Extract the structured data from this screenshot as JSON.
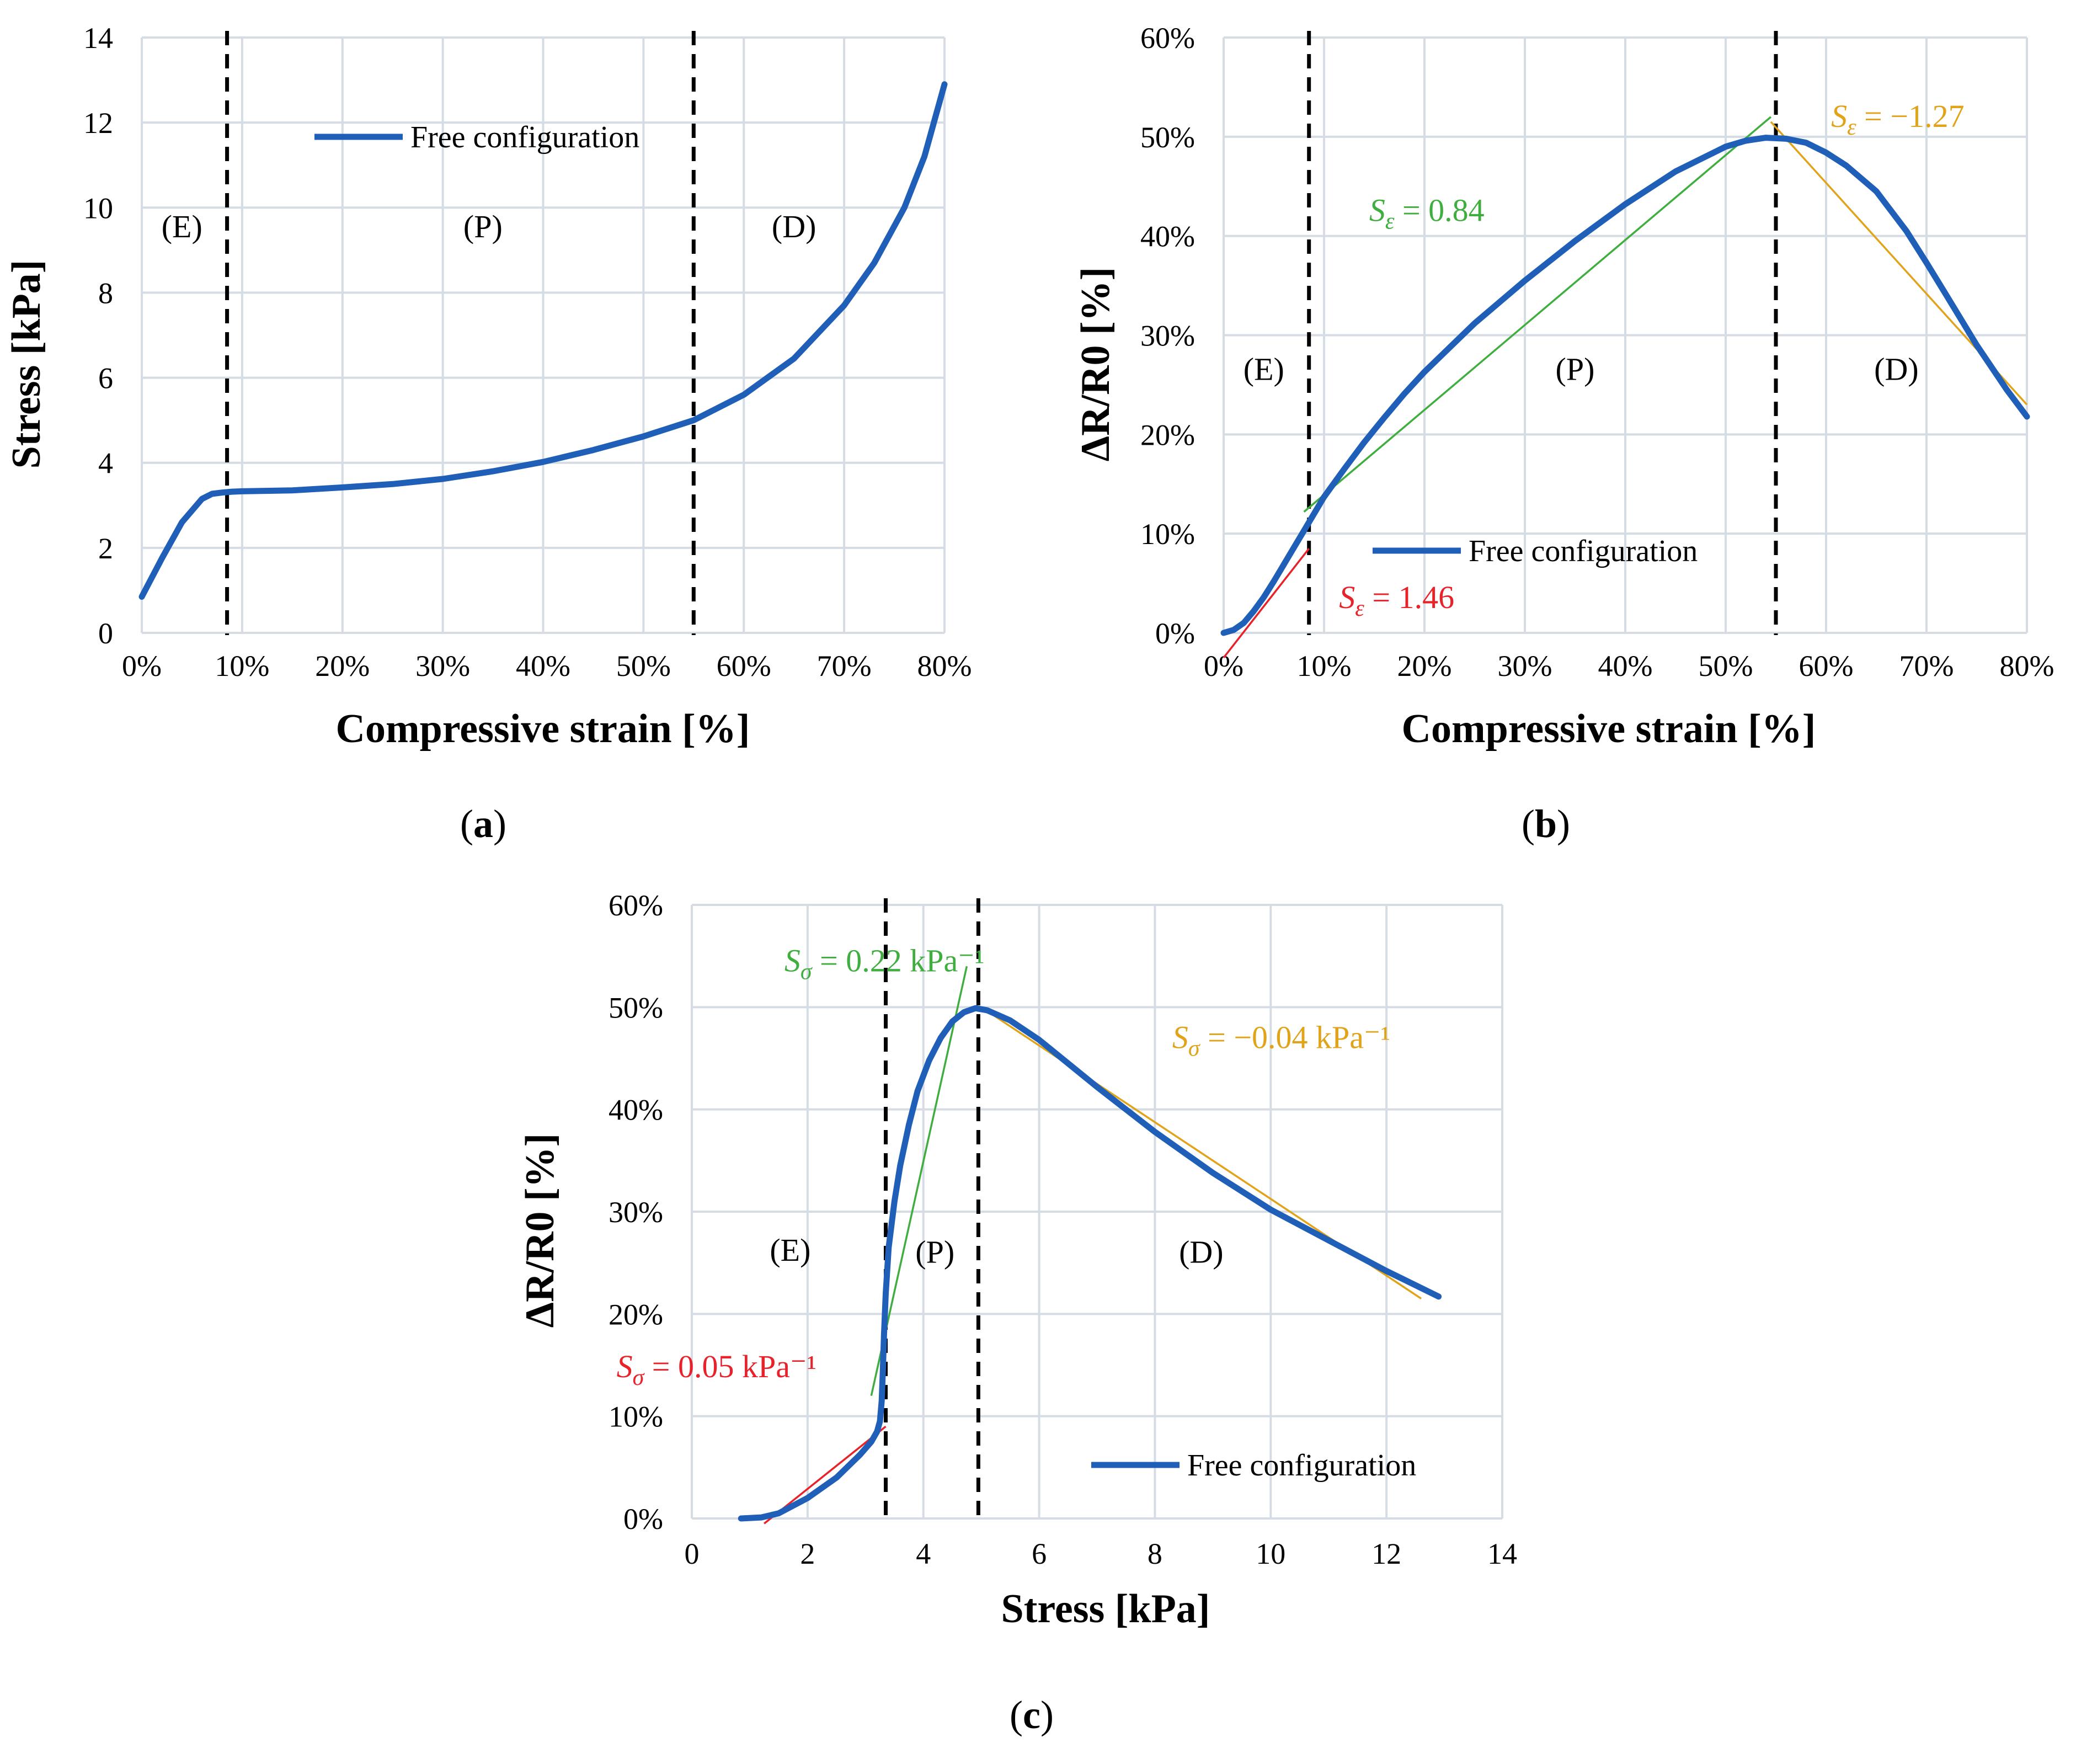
{
  "colors": {
    "curve": "#1f5fb8",
    "grid": "#d6dce4",
    "red": "#e8222a",
    "green": "#3fae3f",
    "orange": "#e0a31a",
    "vline": "#000000"
  },
  "chart_data": [
    {
      "id": "a",
      "type": "line",
      "panel_label": "a",
      "xlabel": "Compressive strain [%]",
      "ylabel": "Stress [kPa]",
      "xlim": [
        0,
        80
      ],
      "ylim": [
        0,
        14
      ],
      "x_ticks": [
        0,
        10,
        20,
        30,
        40,
        50,
        60,
        70,
        80
      ],
      "y_ticks": [
        0,
        2,
        4,
        6,
        8,
        10,
        12,
        14
      ],
      "x_tick_labels": [
        "0%",
        "10%",
        "20%",
        "30%",
        "40%",
        "50%",
        "60%",
        "70%",
        "80%"
      ],
      "y_tick_labels": [
        "0",
        "2",
        "4",
        "6",
        "8",
        "10",
        "12",
        "14"
      ],
      "region_boundaries": [
        8.5,
        55
      ],
      "regions": [
        {
          "label": "(E)",
          "x": 4,
          "y": 9.3
        },
        {
          "label": "(P)",
          "x": 34,
          "y": 9.3
        },
        {
          "label": "(D)",
          "x": 65,
          "y": 9.3
        }
      ],
      "legend": {
        "label": "Free configuration",
        "position": "top-center"
      },
      "series": [
        {
          "name": "Free configuration",
          "x": [
            0,
            2,
            4,
            6,
            7,
            8,
            9,
            10,
            15,
            20,
            25,
            30,
            35,
            40,
            45,
            50,
            55,
            60,
            65,
            70,
            73,
            76,
            78,
            80
          ],
          "y": [
            0.85,
            1.75,
            2.6,
            3.15,
            3.27,
            3.3,
            3.32,
            3.33,
            3.35,
            3.42,
            3.5,
            3.62,
            3.8,
            4.02,
            4.3,
            4.62,
            5.0,
            5.6,
            6.45,
            7.7,
            8.7,
            10.0,
            11.2,
            12.9
          ]
        }
      ],
      "slopes": []
    },
    {
      "id": "b",
      "type": "line",
      "panel_label": "b",
      "xlabel": "Compressive strain [%]",
      "ylabel": "ΔR/R0 [%]",
      "xlim": [
        0,
        80
      ],
      "ylim": [
        0,
        60
      ],
      "x_ticks": [
        0,
        10,
        20,
        30,
        40,
        50,
        60,
        70,
        80
      ],
      "y_ticks": [
        0,
        10,
        20,
        30,
        40,
        50,
        60
      ],
      "x_tick_labels": [
        "0%",
        "10%",
        "20%",
        "30%",
        "40%",
        "50%",
        "60%",
        "70%",
        "80%"
      ],
      "y_tick_labels": [
        "0%",
        "10%",
        "20%",
        "30%",
        "40%",
        "50%",
        "60%"
      ],
      "region_boundaries": [
        8.5,
        55
      ],
      "regions": [
        {
          "label": "(E)",
          "x": 4,
          "y": 25.5
        },
        {
          "label": "(P)",
          "x": 35,
          "y": 25.5
        },
        {
          "label": "(D)",
          "x": 67,
          "y": 25.5
        }
      ],
      "legend": {
        "label": "Free configuration",
        "position": "bottom-center"
      },
      "series": [
        {
          "name": "Free configuration",
          "x": [
            0,
            1,
            2,
            3,
            4,
            5,
            6,
            7,
            8,
            9,
            10,
            12,
            14,
            16,
            18,
            20,
            25,
            30,
            35,
            40,
            45,
            50,
            52,
            54,
            56,
            58,
            60,
            62,
            65,
            68,
            70,
            72,
            75,
            78,
            80
          ],
          "y": [
            0,
            0.3,
            1,
            2.2,
            3.6,
            5.2,
            6.9,
            8.6,
            10.3,
            12.0,
            13.7,
            16.5,
            19.2,
            21.7,
            24.1,
            26.3,
            31.2,
            35.5,
            39.5,
            43.2,
            46.5,
            49.0,
            49.6,
            49.9,
            49.8,
            49.4,
            48.4,
            47.1,
            44.5,
            40.5,
            37.3,
            34.0,
            29.0,
            24.5,
            21.8
          ]
        }
      ],
      "slopes": [
        {
          "label": "1.46",
          "symbol": "S",
          "sub": "ε",
          "color": "red",
          "from": [
            0,
            -2.5
          ],
          "to": [
            8.5,
            8.5
          ],
          "label_pos": [
            11.5,
            2.5
          ]
        },
        {
          "label": "0.84",
          "symbol": "S",
          "sub": "ε",
          "color": "green",
          "from": [
            8,
            12.2
          ],
          "to": [
            54.5,
            52.0
          ],
          "label_pos": [
            14.5,
            41.5
          ]
        },
        {
          "label": "−1.27",
          "symbol": "S",
          "sub": "ε",
          "color": "orange",
          "from": [
            54.5,
            51.5
          ],
          "to": [
            80,
            23.0
          ],
          "label_pos": [
            60.5,
            51.0
          ]
        }
      ]
    },
    {
      "id": "c",
      "type": "line",
      "panel_label": "c",
      "xlabel": "Stress [kPa]",
      "ylabel": "ΔR/R0 [%]",
      "xlim": [
        0,
        14
      ],
      "ylim": [
        0,
        60
      ],
      "x_ticks": [
        0,
        2,
        4,
        6,
        8,
        10,
        12,
        14
      ],
      "y_ticks": [
        0,
        10,
        20,
        30,
        40,
        50,
        60
      ],
      "x_tick_labels": [
        "0",
        "2",
        "4",
        "6",
        "8",
        "10",
        "12",
        "14"
      ],
      "y_tick_labels": [
        "0%",
        "10%",
        "20%",
        "30%",
        "40%",
        "50%",
        "60%"
      ],
      "region_boundaries": [
        3.35,
        4.95
      ],
      "regions": [
        {
          "label": "(E)",
          "x": 1.7,
          "y": 25.2
        },
        {
          "label": "(P)",
          "x": 4.2,
          "y": 25.0
        },
        {
          "label": "(D)",
          "x": 8.8,
          "y": 25.0
        }
      ],
      "legend": {
        "label": "Free configuration",
        "position": "bottom-right"
      },
      "series": [
        {
          "name": "Free configuration",
          "x": [
            0.85,
            1.2,
            1.5,
            2.0,
            2.5,
            2.9,
            3.1,
            3.2,
            3.25,
            3.28,
            3.3,
            3.32,
            3.35,
            3.4,
            3.5,
            3.6,
            3.75,
            3.9,
            4.1,
            4.3,
            4.5,
            4.7,
            4.9,
            5.1,
            5.5,
            6.0,
            7.0,
            8.0,
            9.0,
            10.0,
            11.0,
            12.0,
            12.9
          ],
          "y": [
            0,
            0.1,
            0.5,
            2.0,
            4.0,
            6.2,
            7.5,
            8.5,
            9.5,
            11.5,
            14.5,
            18.0,
            22.0,
            26.5,
            31.0,
            34.5,
            38.5,
            41.8,
            44.8,
            47.0,
            48.6,
            49.5,
            49.9,
            49.7,
            48.7,
            46.8,
            42.2,
            37.8,
            33.8,
            30.2,
            27.2,
            24.2,
            21.7
          ]
        }
      ],
      "slopes": [
        {
          "label": "0.05 kPa⁻¹",
          "symbol": "S",
          "sub": "σ",
          "color": "red",
          "from": [
            1.25,
            -0.5
          ],
          "to": [
            3.35,
            9.0
          ],
          "label_pos": [
            -1.3,
            13.8
          ]
        },
        {
          "label": "0.22 kPa⁻¹",
          "symbol": "S",
          "sub": "σ",
          "color": "green",
          "from": [
            3.1,
            12.0
          ],
          "to": [
            4.75,
            54.0
          ],
          "label_pos": [
            1.6,
            53.5
          ]
        },
        {
          "label": "−0.04 kPa⁻¹",
          "symbol": "S",
          "sub": "σ",
          "color": "orange",
          "from": [
            5.0,
            50.0
          ],
          "to": [
            12.6,
            21.5
          ],
          "label_pos": [
            8.3,
            46.0
          ]
        }
      ]
    }
  ]
}
